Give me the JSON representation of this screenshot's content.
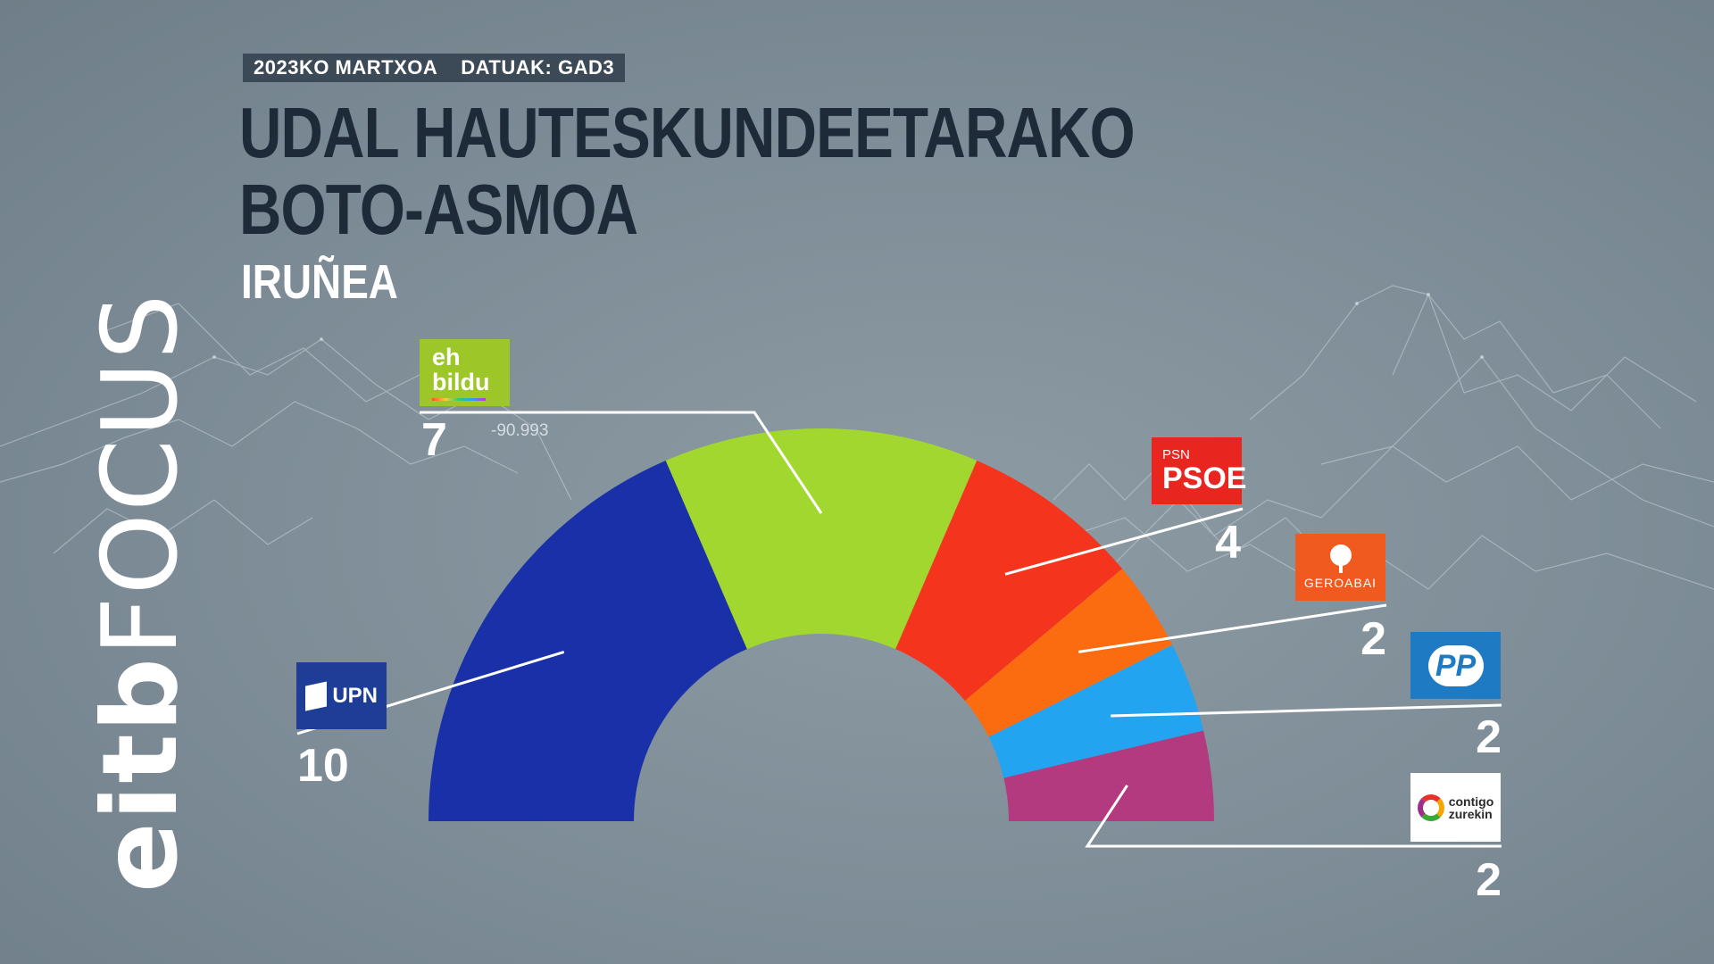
{
  "header": {
    "date": "2023KO MARTXOA",
    "source": "DATUAK: GAD3",
    "title_line1": "UDAL HAUTESKUNDEETARAKO",
    "title_line2": "BOTO-ASMOA",
    "subtitle": "IRUÑEA"
  },
  "brand": {
    "part1": "eitb",
    "part2": "FOCUS"
  },
  "logos": {
    "bildu_line1": "eh",
    "bildu_line2": "bildu",
    "psoe_small": "PSN",
    "psoe_big": "PSOE",
    "geroabai": "GEROABAI",
    "pp": "PP",
    "upn": "UPN",
    "contigo_line1": "contigo",
    "contigo_line2": "zurekin"
  },
  "chart_data": {
    "type": "parliament-hemicycle",
    "title": "UDAL HAUTESKUNDEETARAKO BOTO-ASMOA",
    "subtitle": "IRUÑEA",
    "total_seats": 27,
    "series": [
      {
        "name": "UPN",
        "seats": 10,
        "color": "#1a30a8"
      },
      {
        "name": "EH Bildu",
        "seats": 7,
        "color": "#a1d72e",
        "note": "-90.993"
      },
      {
        "name": "PSN-PSOE",
        "seats": 4,
        "color": "#f5341e"
      },
      {
        "name": "Geroa Bai",
        "seats": 2,
        "color": "#fb6b10"
      },
      {
        "name": "PP",
        "seats": 2,
        "color": "#22a4f0"
      },
      {
        "name": "Contigo Zurekin",
        "seats": 2,
        "color": "#b33a7e"
      }
    ]
  }
}
